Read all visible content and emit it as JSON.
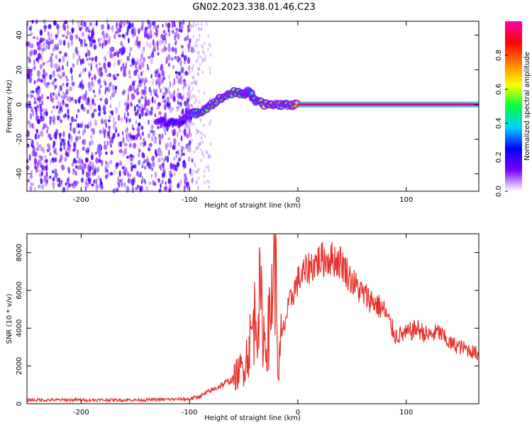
{
  "figure": {
    "title": "GN02.2023.338.01.46.C23"
  },
  "chart_data": [
    {
      "type": "heatmap",
      "xlabel": "Height of straight line (km)",
      "ylabel": "Frequency (Hz)",
      "xlim": [
        -250,
        167
      ],
      "ylim": [
        -50,
        48
      ],
      "xticks": [
        -200,
        -100,
        0,
        100
      ],
      "yticks": [
        -40,
        -20,
        0,
        20,
        40
      ],
      "grid": false,
      "colorbar": {
        "label": "Normalized spectral amplitude",
        "range": [
          0,
          1
        ],
        "ticks": [
          0.0,
          0.2,
          0.4,
          0.6,
          0.8
        ],
        "colors": [
          "#ffffff",
          "#7a00ff",
          "#0000ff",
          "#00d0ff",
          "#00ff40",
          "#ffff00",
          "#ff8000",
          "#ff0000",
          "#ff00b0"
        ]
      },
      "features": {
        "noise_region_x": [
          -250,
          -100
        ],
        "noise_amplitude": 0.18,
        "signal_track": [
          {
            "x": -130,
            "f": -10,
            "a": 0.15
          },
          {
            "x": -110,
            "f": -10,
            "a": 0.25
          },
          {
            "x": -100,
            "f": -6,
            "a": 0.35
          },
          {
            "x": -90,
            "f": -4,
            "a": 0.45
          },
          {
            "x": -80,
            "f": 0,
            "a": 0.5
          },
          {
            "x": -70,
            "f": 4,
            "a": 0.55
          },
          {
            "x": -60,
            "f": 7,
            "a": 0.55
          },
          {
            "x": -50,
            "f": 6,
            "a": 0.5
          },
          {
            "x": -45,
            "f": 8,
            "a": 0.4
          },
          {
            "x": -40,
            "f": 2,
            "a": 0.45
          },
          {
            "x": -30,
            "f": 0,
            "a": 0.6
          },
          {
            "x": -20,
            "f": 0,
            "a": 0.55
          },
          {
            "x": -10,
            "f": 0,
            "a": 0.5
          },
          {
            "x": 0,
            "f": 0,
            "a": 0.7
          }
        ],
        "carrier_line": {
          "x_start": 0,
          "x_end": 167,
          "f": 0,
          "a": 0.95
        }
      }
    },
    {
      "type": "line",
      "xlabel": "Height of straight line (km)",
      "ylabel": "SNR (10 * v/v)",
      "xlim": [
        -250,
        167
      ],
      "ylim": [
        0,
        9000
      ],
      "xticks": [
        -200,
        -100,
        0,
        100
      ],
      "yticks": [
        0,
        2000,
        4000,
        6000,
        8000
      ],
      "grid": false,
      "series": [
        {
          "color": "#e8302b",
          "x": [
            -250,
            -200,
            -150,
            -100,
            -90,
            -80,
            -70,
            -60,
            -50,
            -45,
            -40,
            -35,
            -30,
            -25,
            -22,
            -20,
            -18,
            -15,
            -10,
            -5,
            0,
            10,
            20,
            30,
            40,
            50,
            60,
            70,
            80,
            90,
            100,
            110,
            120,
            130,
            140,
            150,
            160,
            167
          ],
          "y": [
            200,
            200,
            200,
            250,
            400,
            700,
            1000,
            1300,
            2000,
            3000,
            4500,
            5500,
            3000,
            4500,
            8900,
            6000,
            1500,
            3500,
            4800,
            5800,
            6500,
            7200,
            7600,
            7700,
            7500,
            6500,
            5800,
            5400,
            4900,
            3600,
            3700,
            4000,
            3600,
            3800,
            3200,
            3000,
            2800,
            2600
          ]
        }
      ],
      "annotations": [
        {
          "x": -22,
          "y": 8900,
          "text": ""
        }
      ]
    }
  ]
}
